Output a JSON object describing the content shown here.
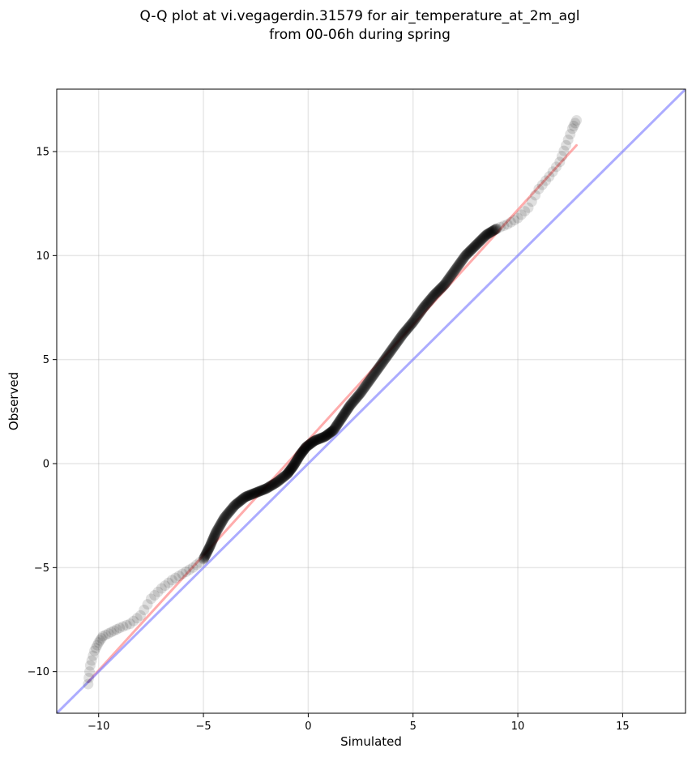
{
  "chart_data": {
    "type": "scatter",
    "title": [
      "Q-Q plot at vi.vegagerdin.31579 for air_temperature_at_2m_agl",
      "from 00-06h during spring"
    ],
    "xlabel": "Simulated",
    "ylabel": "Observed",
    "xlim": [
      -12,
      18
    ],
    "ylim": [
      -12,
      18
    ],
    "xticks": [
      -10,
      -5,
      0,
      5,
      10,
      15
    ],
    "yticks": [
      -10,
      -5,
      0,
      5,
      10,
      15
    ],
    "xtick_labels": [
      "−10",
      "−5",
      "0",
      "5",
      "10",
      "15"
    ],
    "ytick_labels": [
      "−10",
      "−5",
      "0",
      "5",
      "10",
      "15"
    ],
    "grid": true,
    "quantile_curve": [
      [
        -10.5,
        -10.6
      ],
      [
        -10.4,
        -9.7
      ],
      [
        -10.2,
        -9.0
      ],
      [
        -10.0,
        -8.6
      ],
      [
        -9.8,
        -8.3
      ],
      [
        -9.4,
        -8.1
      ],
      [
        -9.0,
        -7.9
      ],
      [
        -8.5,
        -7.7
      ],
      [
        -8.0,
        -7.3
      ],
      [
        -7.5,
        -6.5
      ],
      [
        -7.0,
        -6.0
      ],
      [
        -6.5,
        -5.6
      ],
      [
        -6.0,
        -5.3
      ],
      [
        -5.5,
        -5.0
      ],
      [
        -5.0,
        -4.6
      ],
      [
        -4.7,
        -4.0
      ],
      [
        -4.4,
        -3.3
      ],
      [
        -4.0,
        -2.6
      ],
      [
        -3.5,
        -2.0
      ],
      [
        -3.0,
        -1.6
      ],
      [
        -2.5,
        -1.4
      ],
      [
        -2.0,
        -1.2
      ],
      [
        -1.5,
        -0.9
      ],
      [
        -1.0,
        -0.5
      ],
      [
        -0.7,
        -0.1
      ],
      [
        -0.4,
        0.4
      ],
      [
        -0.1,
        0.8
      ],
      [
        0.3,
        1.1
      ],
      [
        0.8,
        1.3
      ],
      [
        1.2,
        1.6
      ],
      [
        1.6,
        2.2
      ],
      [
        2.0,
        2.8
      ],
      [
        2.5,
        3.4
      ],
      [
        3.0,
        4.1
      ],
      [
        3.5,
        4.8
      ],
      [
        4.0,
        5.5
      ],
      [
        4.5,
        6.2
      ],
      [
        5.0,
        6.8
      ],
      [
        5.5,
        7.5
      ],
      [
        6.0,
        8.1
      ],
      [
        6.5,
        8.6
      ],
      [
        7.0,
        9.3
      ],
      [
        7.5,
        10.0
      ],
      [
        8.0,
        10.5
      ],
      [
        8.5,
        11.0
      ],
      [
        9.0,
        11.3
      ],
      [
        9.5,
        11.5
      ],
      [
        10.0,
        11.8
      ],
      [
        10.5,
        12.3
      ],
      [
        11.0,
        13.2
      ],
      [
        11.5,
        13.8
      ],
      [
        12.0,
        14.5
      ],
      [
        12.3,
        15.3
      ],
      [
        12.6,
        16.1
      ],
      [
        12.8,
        16.5
      ]
    ],
    "series": [
      {
        "color": "#ff7f7f",
        "linewidth": 3,
        "opacity": 0.65,
        "points": [
          [
            -10.5,
            -10.5
          ],
          [
            12.8,
            15.3
          ]
        ]
      },
      {
        "color": "#7f7fff",
        "linewidth": 3,
        "opacity": 0.65,
        "points": [
          [
            -12,
            -12
          ],
          [
            18,
            18
          ]
        ]
      }
    ],
    "marker_color": "#000000",
    "marker_opacity": 0.12
  }
}
